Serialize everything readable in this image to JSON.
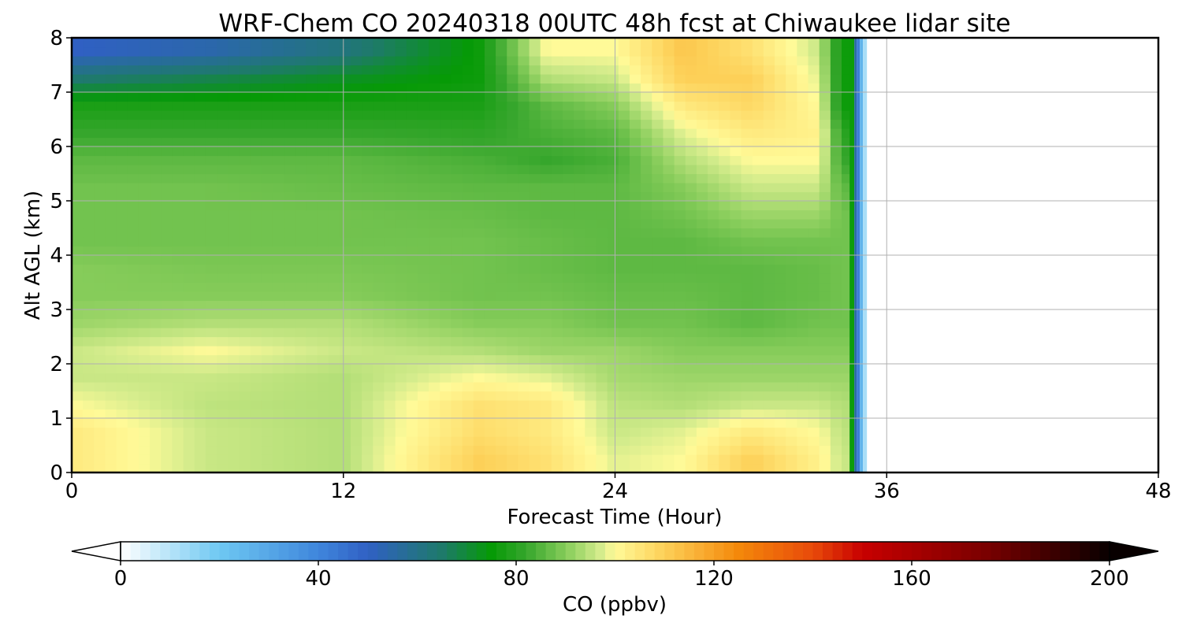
{
  "chart_data": {
    "type": "heatmap",
    "title": "WRF-Chem CO  20240318 00UTC 48h fcst at Chiwaukee lidar site",
    "xlabel": "Forecast Time (Hour)",
    "ylabel": "Alt AGL (km)",
    "xlim": [
      0,
      48
    ],
    "ylim": [
      0,
      8
    ],
    "xticks": [
      0,
      12,
      24,
      36,
      48
    ],
    "yticks": [
      0,
      1,
      2,
      3,
      4,
      5,
      6,
      7,
      8
    ],
    "grid": true,
    "data_valid_until_hour": 34.5,
    "sample_hours": [
      0,
      6,
      12,
      18,
      21,
      24,
      27,
      30,
      33,
      34
    ],
    "sample_altitudes_km": [
      0.25,
      0.75,
      1.25,
      1.75,
      2.25,
      2.75,
      3.25,
      3.75,
      4.25,
      4.75,
      5.25,
      5.75,
      6.25,
      6.75,
      7.25,
      7.75
    ],
    "co_ppbv": [
      [
        104,
        96,
        94,
        110,
        106,
        98,
        100,
        110,
        102,
        96
      ],
      [
        104,
        96,
        94,
        107,
        104,
        96,
        98,
        104,
        100,
        95
      ],
      [
        100,
        95,
        94,
        106,
        104,
        95,
        94,
        96,
        96,
        94
      ],
      [
        96,
        96,
        94,
        100,
        98,
        93,
        92,
        92,
        92,
        92
      ],
      [
        96,
        100,
        96,
        94,
        92,
        92,
        90,
        90,
        90,
        90
      ],
      [
        92,
        94,
        94,
        90,
        90,
        88,
        88,
        86,
        88,
        88
      ],
      [
        90,
        90,
        90,
        88,
        88,
        87,
        87,
        86,
        87,
        88
      ],
      [
        90,
        89,
        89,
        88,
        87,
        86,
        86,
        86,
        87,
        88
      ],
      [
        88,
        88,
        88,
        88,
        87,
        86,
        86,
        88,
        88,
        88
      ],
      [
        88,
        88,
        88,
        87,
        86,
        86,
        88,
        92,
        92,
        88
      ],
      [
        88,
        88,
        87,
        86,
        86,
        86,
        90,
        96,
        96,
        86
      ],
      [
        86,
        86,
        86,
        84,
        82,
        84,
        94,
        100,
        100,
        82
      ],
      [
        82,
        82,
        82,
        81,
        84,
        86,
        98,
        104,
        102,
        80
      ],
      [
        78,
        78,
        78,
        78,
        86,
        90,
        104,
        108,
        100,
        76
      ],
      [
        64,
        68,
        72,
        76,
        94,
        96,
        110,
        110,
        98,
        76
      ],
      [
        50,
        54,
        62,
        76,
        100,
        100,
        112,
        106,
        96,
        76
      ]
    ],
    "colorbar": {
      "label": "CO  (ppbv)",
      "min": 0,
      "max": 200,
      "ticks": [
        0,
        40,
        80,
        120,
        160,
        200
      ],
      "extend": "both",
      "colormap_stops": [
        {
          "value": 0,
          "color": "#ffffff"
        },
        {
          "value": 20,
          "color": "#6ec8f2"
        },
        {
          "value": 40,
          "color": "#3f86dc"
        },
        {
          "value": 50,
          "color": "#3060c4"
        },
        {
          "value": 65,
          "color": "#1e7a6a"
        },
        {
          "value": 75,
          "color": "#069a06"
        },
        {
          "value": 82,
          "color": "#36a62c"
        },
        {
          "value": 90,
          "color": "#86cc5a"
        },
        {
          "value": 97,
          "color": "#d4ec8c"
        },
        {
          "value": 100,
          "color": "#fffa98"
        },
        {
          "value": 110,
          "color": "#fdd058"
        },
        {
          "value": 125,
          "color": "#f4880a"
        },
        {
          "value": 140,
          "color": "#e84a0a"
        },
        {
          "value": 150,
          "color": "#c80000"
        },
        {
          "value": 175,
          "color": "#7a0000"
        },
        {
          "value": 200,
          "color": "#080000"
        }
      ]
    }
  }
}
